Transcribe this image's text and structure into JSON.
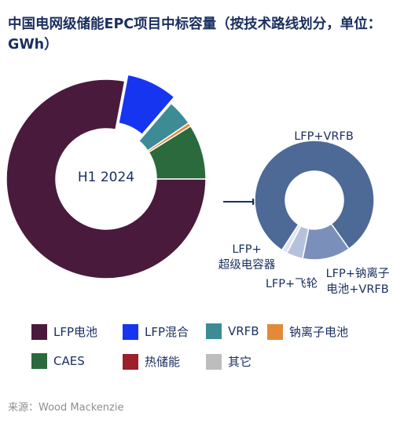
{
  "title": "中国电网级储能EPC项目中标容量（按技术路线划分，单位：GWh）",
  "source": "来源：Wood Mackenzie",
  "chart_data": [
    {
      "type": "pie",
      "label": "H1 2024",
      "slices": [
        {
          "name": "LFP电池",
          "value": 78.0,
          "color": "#4a1a3c"
        },
        {
          "name": "LFP混合",
          "value": 8.3,
          "color": "#1535f0"
        },
        {
          "name": "VRFB",
          "value": 4.2,
          "color": "#3d8c95"
        },
        {
          "name": "钠离子电池",
          "value": 0.6,
          "color": "#e38a3a"
        },
        {
          "name": "CAES",
          "value": 8.9,
          "color": "#2a6a3c"
        }
      ]
    },
    {
      "type": "pie",
      "label": "",
      "slices": [
        {
          "name": "LFP+VRFB",
          "value": 81.0,
          "color": "#4d6a96",
          "label": "LFP+VRFB"
        },
        {
          "name": "LFP+钠离子电池+VRFB",
          "value": 13.0,
          "color": "#7a90bb",
          "label": "LFP+钠离子\n电池+VRFB"
        },
        {
          "name": "LFP+飞轮",
          "value": 4.5,
          "color": "#b6c2db",
          "label": "LFP+飞轮"
        },
        {
          "name": "LFP+超级电容器",
          "value": 1.5,
          "color": "#dfe4ef",
          "label": "LFP+\n超级电容器"
        }
      ]
    }
  ],
  "legend": [
    {
      "name": "LFP电池",
      "color": "#4a1a3c"
    },
    {
      "name": "LFP混合",
      "color": "#1535f0"
    },
    {
      "name": "VRFB",
      "color": "#3d8c95"
    },
    {
      "name": "钠离子电池",
      "color": "#e38a3a"
    },
    {
      "name": "CAES",
      "color": "#2a6a3c"
    },
    {
      "name": "热储能",
      "color": "#9c1f2a"
    },
    {
      "name": "其它",
      "color": "#bdbdbd"
    }
  ]
}
